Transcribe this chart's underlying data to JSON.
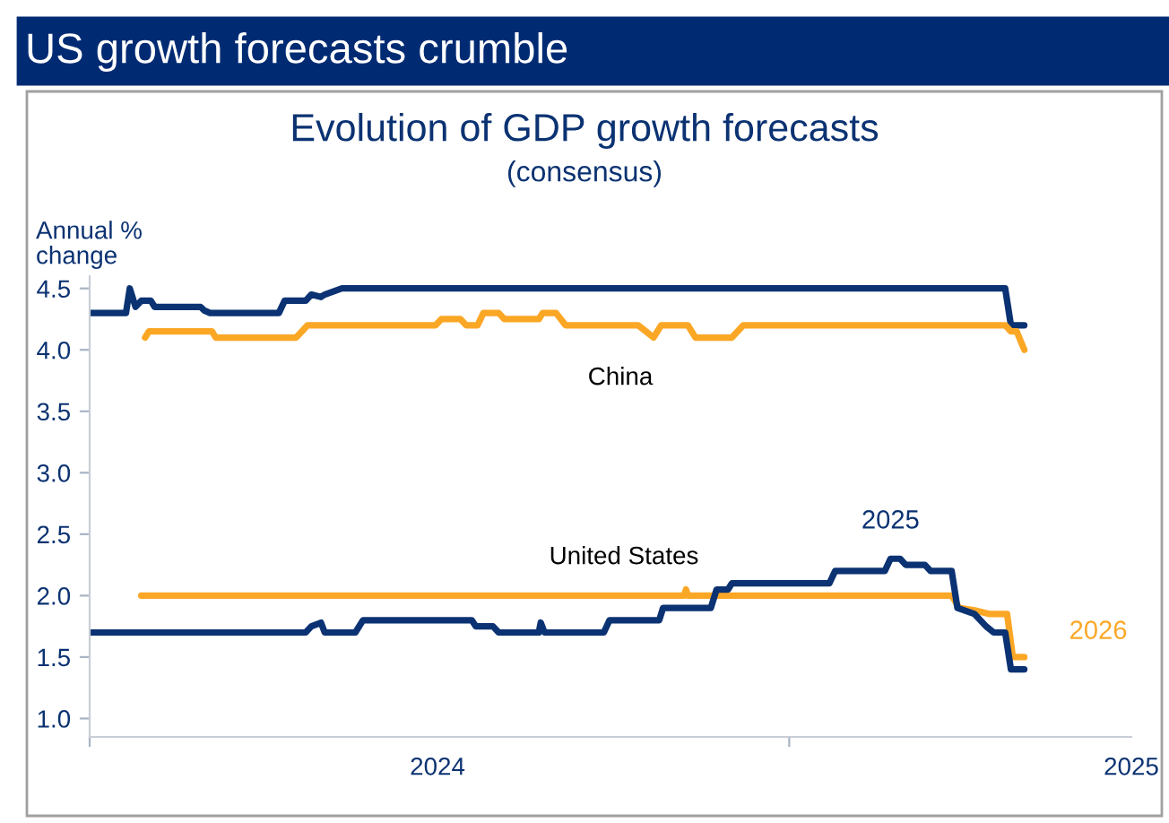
{
  "chart_data": {
    "type": "line",
    "title": "US growth forecasts crumble",
    "subtitle": "Evolution of GDP growth forecasts",
    "ylabel": "Annual %\nchange",
    "annotations": [
      "(consensus)",
      "China",
      "United States"
    ],
    "series": [
      {
        "color": "#0b3272",
        "x": [
          "2024-01-01",
          "2024-01-20",
          "2024-01-22",
          "2024-01-25",
          "2024-01-28",
          "2024-02-02",
          "2024-02-04",
          "2024-02-28",
          "2024-03-01",
          "2024-03-04",
          "2024-04-09",
          "2024-04-12",
          "2024-04-23",
          "2024-04-26",
          "2024-05-01",
          "2024-05-03",
          "2024-05-12",
          "2025-04-24",
          "2025-04-27",
          "2025-05-04"
        ],
        "values": [
          4.3,
          4.3,
          4.5,
          4.35,
          4.4,
          4.4,
          4.35,
          4.35,
          4.32,
          4.3,
          4.3,
          4.4,
          4.4,
          4.45,
          4.43,
          4.45,
          4.5,
          4.5,
          4.2,
          4.2
        ]
      },
      {
        "color": "#fba726",
        "x": [
          "2024-01-30",
          "2024-02-01",
          "2024-03-05",
          "2024-03-07",
          "2024-04-18",
          "2024-04-21",
          "2024-04-24",
          "2024-06-30",
          "2024-07-03",
          "2024-07-13",
          "2024-07-16",
          "2024-07-22",
          "2024-07-25",
          "2024-08-02",
          "2024-08-05",
          "2024-08-23",
          "2024-08-25",
          "2024-09-01",
          "2024-09-06",
          "2024-10-14",
          "2024-10-18",
          "2024-10-22",
          "2024-10-26",
          "2024-11-09",
          "2024-11-13",
          "2024-12-02",
          "2024-12-08",
          "2025-04-24",
          "2025-04-27",
          "2025-04-30",
          "2025-05-04"
        ],
        "values": [
          4.1,
          4.15,
          4.15,
          4.1,
          4.1,
          4.15,
          4.2,
          4.2,
          4.25,
          4.25,
          4.2,
          4.2,
          4.3,
          4.3,
          4.25,
          4.25,
          4.3,
          4.3,
          4.2,
          4.2,
          4.15,
          4.1,
          4.2,
          4.2,
          4.1,
          4.1,
          4.2,
          4.2,
          4.15,
          4.15,
          4.0
        ]
      },
      {
        "name": "2026",
        "color": "#fba726",
        "x": [
          "2024-01-28",
          "2024-11-07",
          "2024-11-08",
          "2024-11-09",
          "2025-03-27",
          "2025-03-31",
          "2025-04-08",
          "2025-04-16",
          "2025-04-25",
          "2025-04-28",
          "2025-05-04"
        ],
        "values": [
          2.0,
          2.0,
          2.05,
          2.0,
          2.0,
          1.9,
          1.88,
          1.85,
          1.85,
          1.5,
          1.5
        ]
      },
      {
        "name": "2025",
        "color": "#0b3272",
        "x": [
          "2024-01-01",
          "2024-04-23",
          "2024-04-26",
          "2024-05-01",
          "2024-05-03",
          "2024-05-19",
          "2024-05-23",
          "2024-07-19",
          "2024-07-21",
          "2024-07-30",
          "2024-08-02",
          "2024-08-23",
          "2024-08-24",
          "2024-08-26",
          "2024-09-26",
          "2024-09-29",
          "2024-10-25",
          "2024-10-27",
          "2024-11-21",
          "2024-11-24",
          "2024-11-30",
          "2024-12-02",
          "2025-01-22",
          "2025-01-25",
          "2025-02-20",
          "2025-02-23",
          "2025-02-28",
          "2025-03-03",
          "2025-03-13",
          "2025-03-16",
          "2025-03-27",
          "2025-03-30",
          "2025-04-08",
          "2025-04-14",
          "2025-04-18",
          "2025-04-24",
          "2025-04-27",
          "2025-05-04"
        ],
        "values": [
          1.7,
          1.7,
          1.75,
          1.78,
          1.7,
          1.7,
          1.8,
          1.8,
          1.75,
          1.75,
          1.7,
          1.7,
          1.78,
          1.7,
          1.7,
          1.8,
          1.8,
          1.9,
          1.9,
          2.05,
          2.05,
          2.1,
          2.1,
          2.2,
          2.2,
          2.3,
          2.3,
          2.25,
          2.25,
          2.2,
          2.2,
          1.9,
          1.85,
          1.75,
          1.7,
          1.7,
          1.4,
          1.4
        ]
      }
    ],
    "xlim": [
      "2024-01-01",
      "2025-06-29"
    ],
    "xticks": [
      {
        "value": "2024-01-01",
        "label": null
      },
      {
        "value": "2024-07-01",
        "label": "2024"
      },
      {
        "value": "2025-01-01",
        "label": null
      },
      {
        "value": "2025-06-29",
        "label": "2025"
      }
    ],
    "ylim": [
      0.85,
      4.6
    ],
    "yticks": [
      {
        "value": 1,
        "label": "1.0"
      },
      1.5,
      {
        "value": 2,
        "label": "2.0"
      },
      2.5,
      {
        "value": 3,
        "label": "3.0"
      },
      3.5,
      {
        "value": 4,
        "label": "4.0"
      },
      4.5
    ],
    "grid": false,
    "legend": false,
    "marker": "none",
    "line_style": "solid"
  }
}
